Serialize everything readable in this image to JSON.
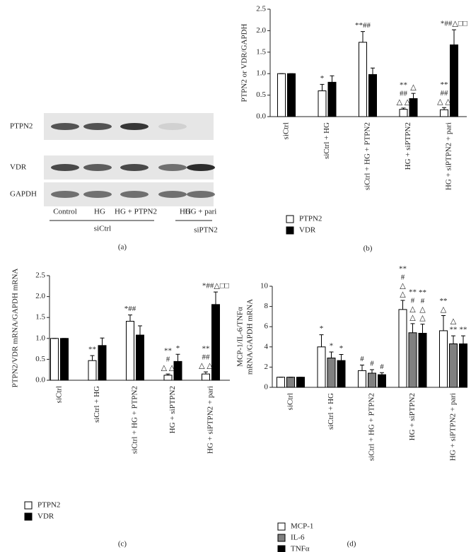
{
  "blot": {
    "label": "(a)",
    "rows": [
      "PTPN2",
      "VDR",
      "GAPDH"
    ],
    "lanes": [
      "Control",
      "HG",
      "HG + PTPN2",
      "HG",
      "HG + pari"
    ],
    "groups": [
      "siCtrl",
      "siPTN2"
    ]
  },
  "chart_data": [
    {
      "type": "bar",
      "label": "(b)",
      "ylabel": [
        "PTPN2 or VDR/GAPDH"
      ],
      "categories": [
        "siCtrl",
        "siCtrl + HG",
        "siCtrl + HG + PTPN2",
        "HG + siPTPN2",
        "HG + siPTPN2 + pari"
      ],
      "series": [
        {
          "name": "PTPN2",
          "color": "#ffffff",
          "values": [
            1.0,
            0.6,
            1.73,
            0.17,
            0.16
          ],
          "errors": [
            0,
            0.15,
            0.25,
            0.03,
            0.05
          ],
          "annotations": [
            null,
            [
              "*"
            ],
            [
              "**##"
            ],
            [
              "**",
              "##",
              "△ △"
            ],
            [
              "**",
              "##",
              "△ △"
            ]
          ]
        },
        {
          "name": "VDR",
          "color": "#000000",
          "values": [
            1.0,
            0.8,
            0.98,
            0.42,
            1.67
          ],
          "errors": [
            0,
            0.15,
            0.15,
            0.12,
            0.35
          ],
          "annotations": [
            null,
            null,
            null,
            [
              "△"
            ],
            [
              "*##△□□"
            ]
          ]
        }
      ],
      "ylim": [
        0,
        2.5
      ],
      "yticks": [
        {
          "value": 0,
          "label": "0.0"
        },
        {
          "value": 0.5,
          "label": "0.5"
        },
        {
          "value": 1,
          "label": "1.0"
        },
        {
          "value": 1.5,
          "label": "1.5"
        },
        {
          "value": 2,
          "label": "2.0"
        },
        {
          "value": 2.5,
          "label": "2.5"
        }
      ]
    },
    {
      "type": "bar",
      "label": "(c)",
      "ylabel": [
        "PTPN2/VDR mRNA/GAPDH mRNA"
      ],
      "categories": [
        "siCtrl",
        "siCtrl + HG",
        "siCtrl + HG + PTPN2",
        "HG + siPTPN2",
        "HG + siPTPN2 + pari"
      ],
      "series": [
        {
          "name": "PTPN2",
          "color": "#ffffff",
          "values": [
            1.0,
            0.47,
            1.41,
            0.12,
            0.15
          ],
          "errors": [
            0,
            0.12,
            0.15,
            0.03,
            0.05
          ],
          "annotations": [
            null,
            [
              "**"
            ],
            [
              "*##"
            ],
            [
              "**",
              "#",
              "△ △"
            ],
            [
              "**",
              "##",
              "△ △"
            ]
          ]
        },
        {
          "name": "VDR",
          "color": "#000000",
          "values": [
            1.0,
            0.83,
            1.08,
            0.45,
            1.81
          ],
          "errors": [
            0,
            0.18,
            0.22,
            0.17,
            0.3
          ],
          "annotations": [
            null,
            null,
            null,
            [
              "*"
            ],
            [
              "*##△□□"
            ]
          ]
        }
      ],
      "ylim": [
        0,
        2.5
      ],
      "yticks": [
        {
          "value": 0,
          "label": "0.0"
        },
        {
          "value": 0.5,
          "label": "0.5"
        },
        {
          "value": 1,
          "label": "1.0"
        },
        {
          "value": 1.5,
          "label": "1.5"
        },
        {
          "value": 2,
          "label": "2.0"
        },
        {
          "value": 2.5,
          "label": "2.5"
        }
      ]
    },
    {
      "type": "bar",
      "label": "(d)",
      "ylabel": [
        "MCP-1/IL-6/TNFα",
        "mRNA/GAPDH mRNA"
      ],
      "categories": [
        "siCtrl",
        "siCtrl + HG",
        "siCtrl + HG + PTPN2",
        "HG + siPTPN2",
        "HG + siPTPN2 + pari"
      ],
      "series": [
        {
          "name": "MCP-1",
          "color": "#ffffff",
          "values": [
            1.0,
            4.0,
            1.65,
            7.7,
            5.6
          ],
          "errors": [
            0,
            1.2,
            0.55,
            0.9,
            1.5
          ],
          "annotations": [
            null,
            [
              "*"
            ],
            [
              "#"
            ],
            [
              "**",
              "#",
              "△",
              "△"
            ],
            [
              "**",
              "△"
            ]
          ]
        },
        {
          "name": "IL-6",
          "color": "#808080",
          "values": [
            1.0,
            2.9,
            1.4,
            5.4,
            4.3
          ],
          "errors": [
            0,
            0.6,
            0.35,
            0.9,
            0.8
          ],
          "annotations": [
            null,
            [
              "*"
            ],
            [
              "#"
            ],
            [
              "**",
              "#",
              "△",
              "△"
            ],
            [
              "△",
              "**"
            ]
          ]
        },
        {
          "name": "TNFα",
          "color": "#000000",
          "values": [
            1.0,
            2.65,
            1.25,
            5.35,
            4.3
          ],
          "errors": [
            0,
            0.6,
            0.2,
            0.9,
            0.8
          ],
          "annotations": [
            null,
            [
              "*"
            ],
            [
              "#"
            ],
            [
              "**",
              "#",
              "△",
              "△"
            ],
            [
              "**"
            ]
          ]
        }
      ],
      "ylim": [
        0,
        10
      ],
      "yticks": [
        0,
        2,
        4,
        6,
        8,
        10
      ]
    }
  ]
}
